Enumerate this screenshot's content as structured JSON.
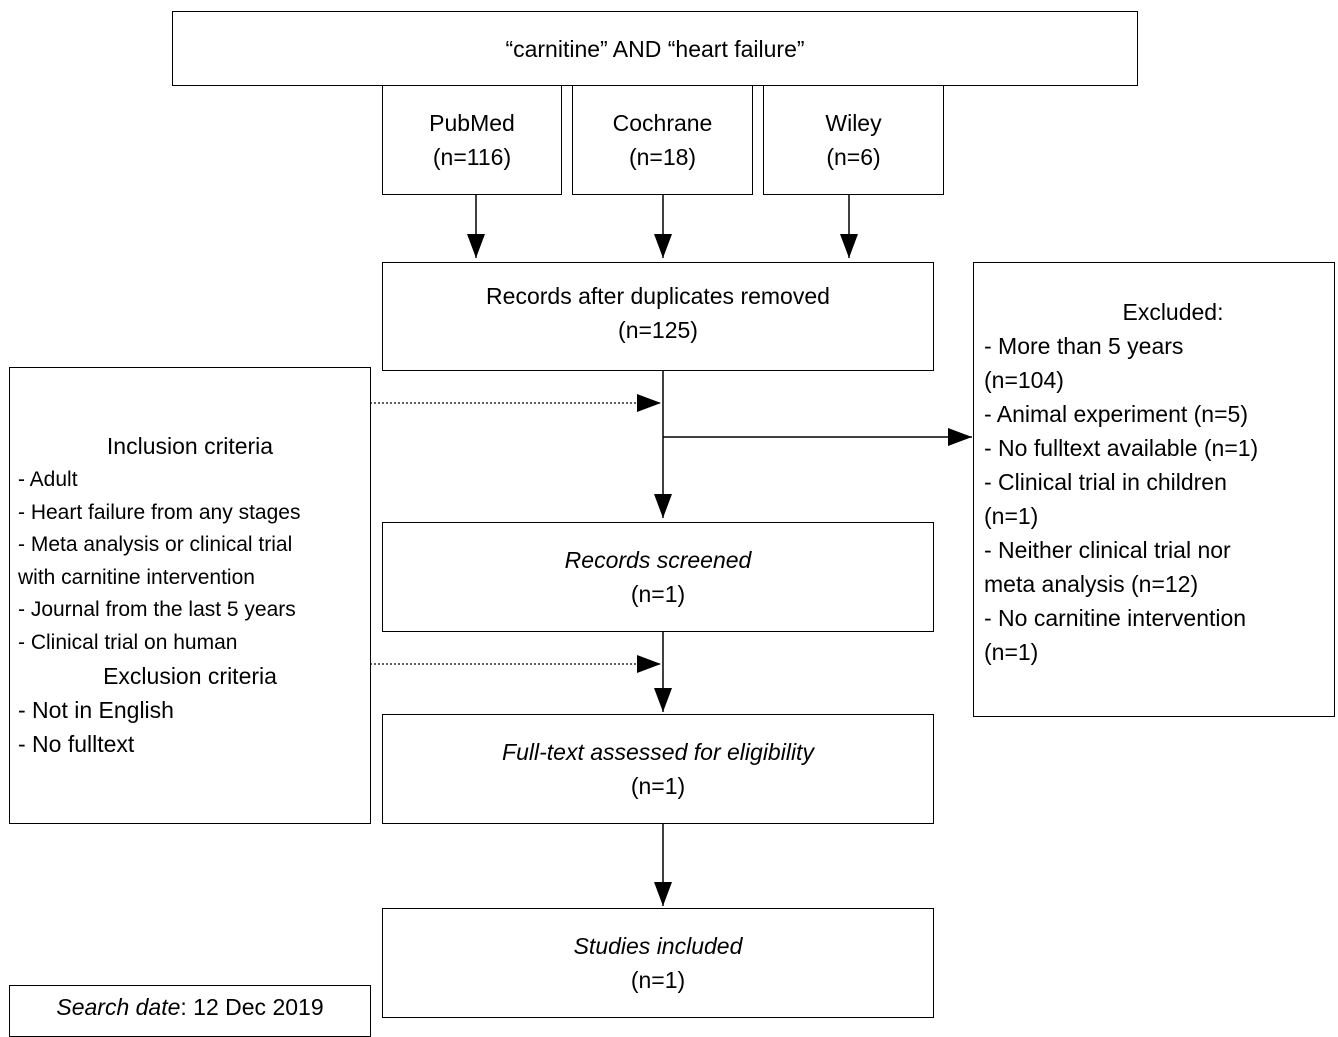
{
  "search_query": "“carnitine” AND “heart failure”",
  "sources": [
    {
      "name": "PubMed",
      "count": "(n=116)"
    },
    {
      "name": "Cochrane",
      "count": "(n=18)"
    },
    {
      "name": "Wiley",
      "count": "(n=6)"
    }
  ],
  "duplicates_removed": {
    "label": "Records after duplicates removed",
    "count": "(n=125)"
  },
  "records_screened": {
    "label": "Records screened",
    "count": "(n=1)"
  },
  "fulltext_assessed": {
    "label": "Full-text assessed for eligibility",
    "count": "(n=1)"
  },
  "studies_included": {
    "label": "Studies included",
    "count": "(n=1)"
  },
  "criteria": {
    "inclusion_title": "Inclusion criteria",
    "inclusion_items": [
      "- Adult",
      "- Heart failure from any stages",
      "- Meta analysis or clinical trial",
      "with carnitine intervention",
      "- Journal from the last 5 years",
      "- Clinical trial on human"
    ],
    "exclusion_title": "Exclusion criteria",
    "exclusion_items": [
      "- Not in English",
      "- No fulltext"
    ]
  },
  "excluded": {
    "title": "Excluded:",
    "lines": [
      "- More than 5 years",
      "(n=104)",
      "- Animal experiment (n=5)",
      "- No fulltext available (n=1)",
      "- Clinical trial in children",
      "(n=1)",
      "- Neither clinical trial nor",
      "meta analysis (n=12)",
      "- No carnitine intervention",
      "(n=1)"
    ]
  },
  "search_date": {
    "label": "Search date",
    "value": ": 12 Dec 2019"
  }
}
